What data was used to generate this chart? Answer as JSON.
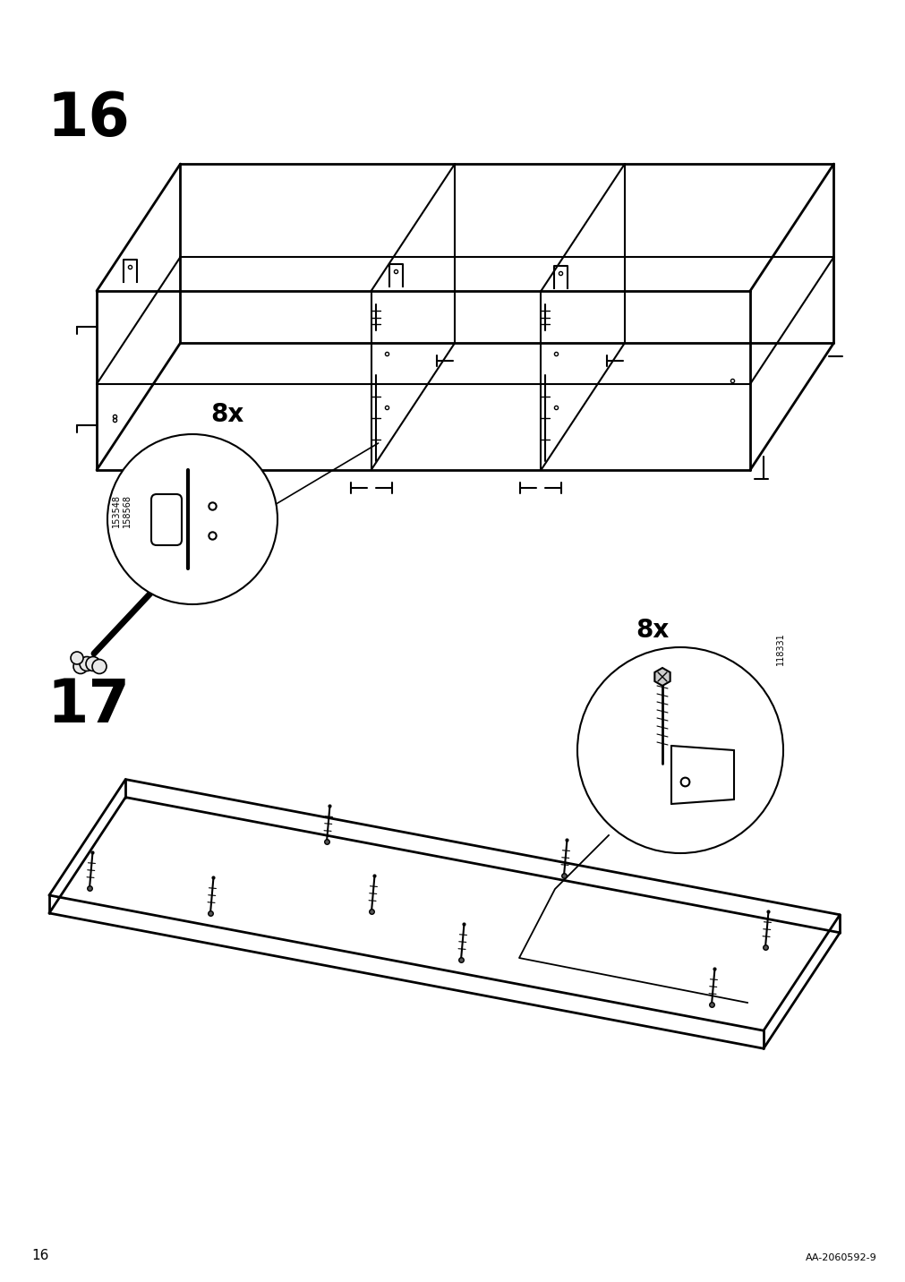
{
  "page_number": "16",
  "article_number": "AA-2060592-9",
  "step16_number": "16",
  "step17_number": "17",
  "step16_8x_label": "8x",
  "step16_part_codes": "153548\n158568",
  "step17_8x_label": "8x",
  "step17_part_code": "118331",
  "background_color": "#ffffff",
  "line_color": "#000000",
  "step_label_fontsize": 48,
  "annotation_fontsize": 20,
  "small_text_fontsize": 7
}
